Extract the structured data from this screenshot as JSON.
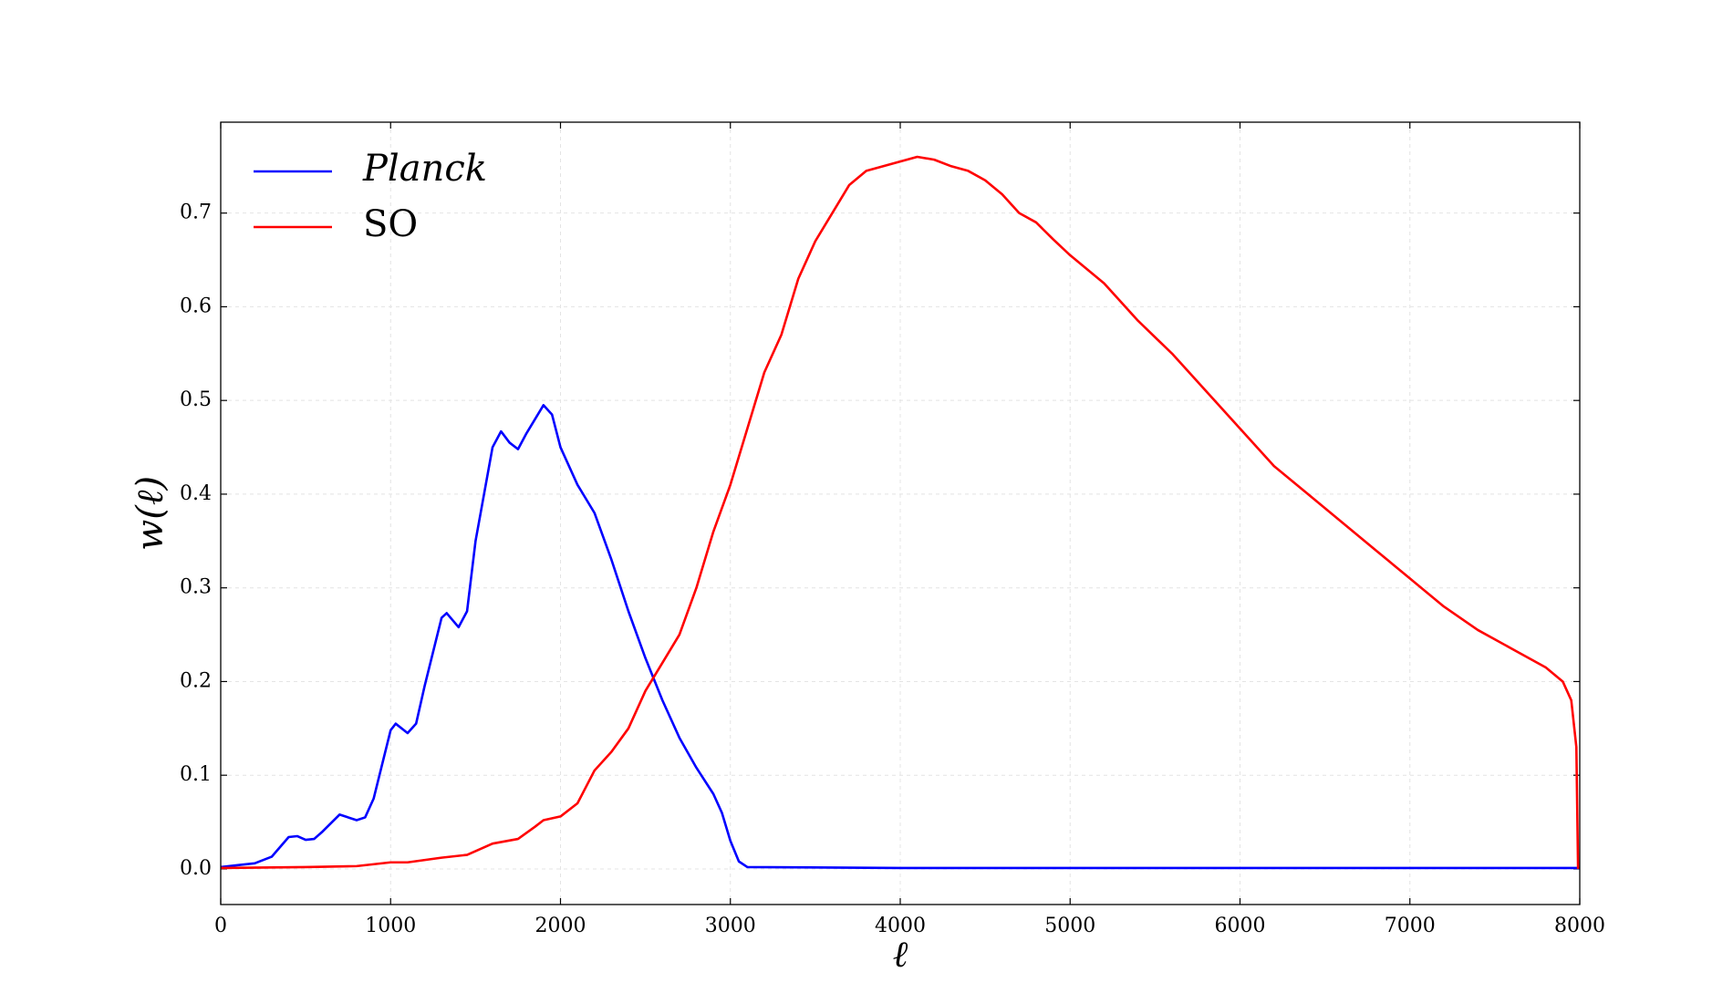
{
  "chart_data": {
    "type": "line",
    "xlabel": "ℓ",
    "ylabel": "w(ℓ)",
    "xlim": [
      0,
      8000
    ],
    "ylim": [
      -0.038,
      0.797
    ],
    "xticks": [
      0,
      1000,
      2000,
      3000,
      4000,
      5000,
      6000,
      7000,
      8000
    ],
    "yticks": [
      {
        "value": 0,
        "label": "0.0"
      },
      0.1,
      0.2,
      0.3,
      0.4,
      0.5,
      0.6,
      0.7
    ],
    "grid": true,
    "legend": "upper left",
    "series": [
      {
        "name": "Planck",
        "color": "#0000ff",
        "x": [
          0,
          100,
          200,
          300,
          400,
          450,
          500,
          550,
          600,
          700,
          800,
          850,
          900,
          1000,
          1030,
          1100,
          1150,
          1200,
          1300,
          1330,
          1400,
          1450,
          1500,
          1600,
          1650,
          1700,
          1750,
          1800,
          1900,
          1950,
          2000,
          2100,
          2200,
          2300,
          2400,
          2500,
          2600,
          2700,
          2800,
          2900,
          2950,
          3000,
          3050,
          3100,
          4000,
          5000,
          6000,
          7000,
          8000
        ],
        "values": [
          0.002,
          0.004,
          0.006,
          0.013,
          0.034,
          0.035,
          0.031,
          0.032,
          0.04,
          0.058,
          0.052,
          0.055,
          0.075,
          0.148,
          0.155,
          0.145,
          0.155,
          0.195,
          0.268,
          0.273,
          0.258,
          0.275,
          0.35,
          0.45,
          0.467,
          0.455,
          0.448,
          0.465,
          0.495,
          0.485,
          0.45,
          0.41,
          0.38,
          0.33,
          0.275,
          0.225,
          0.18,
          0.14,
          0.108,
          0.08,
          0.06,
          0.03,
          0.008,
          0.002,
          0.001,
          0.001,
          0.001,
          0.001,
          0.001
        ]
      },
      {
        "name": "SO",
        "color": "#ff0000",
        "x": [
          0,
          500,
          800,
          1000,
          1100,
          1300,
          1450,
          1600,
          1750,
          1850,
          1900,
          2000,
          2100,
          2200,
          2300,
          2400,
          2500,
          2600,
          2700,
          2800,
          2900,
          3000,
          3100,
          3200,
          3300,
          3400,
          3500,
          3600,
          3700,
          3800,
          3900,
          4000,
          4100,
          4200,
          4300,
          4400,
          4500,
          4600,
          4700,
          4800,
          4900,
          5000,
          5200,
          5400,
          5600,
          5800,
          6000,
          6200,
          6400,
          6600,
          6800,
          7000,
          7200,
          7400,
          7600,
          7800,
          7900,
          7950,
          7980,
          7990
        ],
        "values": [
          0.001,
          0.002,
          0.003,
          0.007,
          0.007,
          0.012,
          0.015,
          0.027,
          0.032,
          0.045,
          0.052,
          0.056,
          0.07,
          0.105,
          0.125,
          0.15,
          0.19,
          0.22,
          0.25,
          0.3,
          0.36,
          0.41,
          0.47,
          0.53,
          0.57,
          0.63,
          0.67,
          0.7,
          0.73,
          0.745,
          0.75,
          0.755,
          0.76,
          0.757,
          0.75,
          0.745,
          0.735,
          0.72,
          0.7,
          0.69,
          0.672,
          0.655,
          0.625,
          0.585,
          0.55,
          0.51,
          0.47,
          0.43,
          0.4,
          0.37,
          0.34,
          0.31,
          0.28,
          0.255,
          0.235,
          0.215,
          0.2,
          0.18,
          0.13,
          0.0
        ]
      }
    ]
  }
}
